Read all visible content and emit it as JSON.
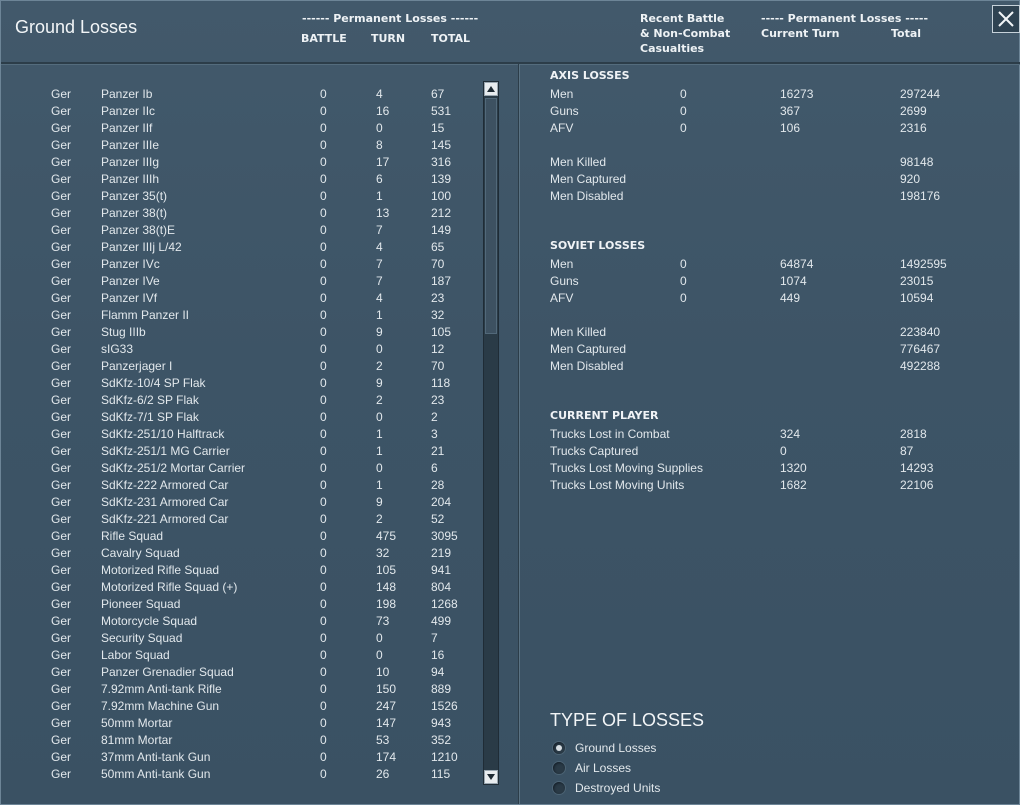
{
  "window": {
    "title": "Ground Losses"
  },
  "header": {
    "perm_losses_left": "------ Permanent Losses ------",
    "col_battle": "BATTLE",
    "col_turn": "TURN",
    "col_total": "TOTAL",
    "recent_line1": "Recent Battle",
    "recent_line2": "& Non-Combat",
    "recent_line3": "Casualties",
    "perm_losses_right": "----- Permanent Losses -----",
    "col_current_turn": "Current Turn",
    "col_total_right": "Total"
  },
  "units": [
    {
      "nat": "Ger",
      "name": "Panzer Ib",
      "battle": "0",
      "turn": "4",
      "total": "67"
    },
    {
      "nat": "Ger",
      "name": "Panzer IIc",
      "battle": "0",
      "turn": "16",
      "total": "531"
    },
    {
      "nat": "Ger",
      "name": "Panzer IIf",
      "battle": "0",
      "turn": "0",
      "total": "15"
    },
    {
      "nat": "Ger",
      "name": "Panzer IIIe",
      "battle": "0",
      "turn": "8",
      "total": "145"
    },
    {
      "nat": "Ger",
      "name": "Panzer IIIg",
      "battle": "0",
      "turn": "17",
      "total": "316"
    },
    {
      "nat": "Ger",
      "name": "Panzer IIIh",
      "battle": "0",
      "turn": "6",
      "total": "139"
    },
    {
      "nat": "Ger",
      "name": "Panzer 35(t)",
      "battle": "0",
      "turn": "1",
      "total": "100"
    },
    {
      "nat": "Ger",
      "name": "Panzer 38(t)",
      "battle": "0",
      "turn": "13",
      "total": "212"
    },
    {
      "nat": "Ger",
      "name": "Panzer 38(t)E",
      "battle": "0",
      "turn": "7",
      "total": "149"
    },
    {
      "nat": "Ger",
      "name": "Panzer IIIj L/42",
      "battle": "0",
      "turn": "4",
      "total": "65"
    },
    {
      "nat": "Ger",
      "name": "Panzer IVc",
      "battle": "0",
      "turn": "7",
      "total": "70"
    },
    {
      "nat": "Ger",
      "name": "Panzer IVe",
      "battle": "0",
      "turn": "7",
      "total": "187"
    },
    {
      "nat": "Ger",
      "name": "Panzer IVf",
      "battle": "0",
      "turn": "4",
      "total": "23"
    },
    {
      "nat": "Ger",
      "name": "Flamm Panzer II",
      "battle": "0",
      "turn": "1",
      "total": "32"
    },
    {
      "nat": "Ger",
      "name": "Stug IIIb",
      "battle": "0",
      "turn": "9",
      "total": "105"
    },
    {
      "nat": "Ger",
      "name": "sIG33",
      "battle": "0",
      "turn": "0",
      "total": "12"
    },
    {
      "nat": "Ger",
      "name": "Panzerjager I",
      "battle": "0",
      "turn": "2",
      "total": "70"
    },
    {
      "nat": "Ger",
      "name": "SdKfz-10/4 SP Flak",
      "battle": "0",
      "turn": "9",
      "total": "118"
    },
    {
      "nat": "Ger",
      "name": "SdKfz-6/2 SP Flak",
      "battle": "0",
      "turn": "2",
      "total": "23"
    },
    {
      "nat": "Ger",
      "name": "SdKfz-7/1 SP Flak",
      "battle": "0",
      "turn": "0",
      "total": "2"
    },
    {
      "nat": "Ger",
      "name": "SdKfz-251/10 Halftrack",
      "battle": "0",
      "turn": "1",
      "total": "3"
    },
    {
      "nat": "Ger",
      "name": "SdKfz-251/1 MG Carrier",
      "battle": "0",
      "turn": "1",
      "total": "21"
    },
    {
      "nat": "Ger",
      "name": "SdKfz-251/2 Mortar Carrier",
      "battle": "0",
      "turn": "0",
      "total": "6"
    },
    {
      "nat": "Ger",
      "name": "SdKfz-222 Armored Car",
      "battle": "0",
      "turn": "1",
      "total": "28"
    },
    {
      "nat": "Ger",
      "name": "SdKfz-231 Armored Car",
      "battle": "0",
      "turn": "9",
      "total": "204"
    },
    {
      "nat": "Ger",
      "name": "SdKfz-221 Armored Car",
      "battle": "0",
      "turn": "2",
      "total": "52"
    },
    {
      "nat": "Ger",
      "name": "Rifle Squad",
      "battle": "0",
      "turn": "475",
      "total": "3095"
    },
    {
      "nat": "Ger",
      "name": "Cavalry Squad",
      "battle": "0",
      "turn": "32",
      "total": "219"
    },
    {
      "nat": "Ger",
      "name": "Motorized Rifle Squad",
      "battle": "0",
      "turn": "105",
      "total": "941"
    },
    {
      "nat": "Ger",
      "name": "Motorized Rifle Squad (+)",
      "battle": "0",
      "turn": "148",
      "total": "804"
    },
    {
      "nat": "Ger",
      "name": "Pioneer Squad",
      "battle": "0",
      "turn": "198",
      "total": "1268"
    },
    {
      "nat": "Ger",
      "name": "Motorcycle Squad",
      "battle": "0",
      "turn": "73",
      "total": "499"
    },
    {
      "nat": "Ger",
      "name": "Security Squad",
      "battle": "0",
      "turn": "0",
      "total": "7"
    },
    {
      "nat": "Ger",
      "name": "Labor Squad",
      "battle": "0",
      "turn": "0",
      "total": "16"
    },
    {
      "nat": "Ger",
      "name": "Panzer Grenadier Squad",
      "battle": "0",
      "turn": "10",
      "total": "94"
    },
    {
      "nat": "Ger",
      "name": "7.92mm Anti-tank Rifle",
      "battle": "0",
      "turn": "150",
      "total": "889"
    },
    {
      "nat": "Ger",
      "name": "7.92mm Machine Gun",
      "battle": "0",
      "turn": "247",
      "total": "1526"
    },
    {
      "nat": "Ger",
      "name": "50mm Mortar",
      "battle": "0",
      "turn": "147",
      "total": "943"
    },
    {
      "nat": "Ger",
      "name": "81mm Mortar",
      "battle": "0",
      "turn": "53",
      "total": "352"
    },
    {
      "nat": "Ger",
      "name": "37mm Anti-tank Gun",
      "battle": "0",
      "turn": "174",
      "total": "1210"
    },
    {
      "nat": "Ger",
      "name": "50mm Anti-tank Gun",
      "battle": "0",
      "turn": "26",
      "total": "115"
    }
  ],
  "axis": {
    "title": "AXIS LOSSES",
    "rows": [
      {
        "label": "Men",
        "battle": "0",
        "current": "16273",
        "total": "297244"
      },
      {
        "label": "Guns",
        "battle": "0",
        "current": "367",
        "total": "2699"
      },
      {
        "label": "AFV",
        "battle": "0",
        "current": "106",
        "total": "2316"
      }
    ],
    "breakdown": [
      {
        "label": "Men Killed",
        "total": "98148"
      },
      {
        "label": "Men Captured",
        "total": "920"
      },
      {
        "label": "Men Disabled",
        "total": "198176"
      }
    ]
  },
  "soviet": {
    "title": "SOVIET LOSSES",
    "rows": [
      {
        "label": "Men",
        "battle": "0",
        "current": "64874",
        "total": "1492595"
      },
      {
        "label": "Guns",
        "battle": "0",
        "current": "1074",
        "total": "23015"
      },
      {
        "label": "AFV",
        "battle": "0",
        "current": "449",
        "total": "10594"
      }
    ],
    "breakdown": [
      {
        "label": "Men Killed",
        "total": "223840"
      },
      {
        "label": "Men Captured",
        "total": "776467"
      },
      {
        "label": "Men Disabled",
        "total": "492288"
      }
    ]
  },
  "current_player": {
    "title": "CURRENT PLAYER",
    "rows": [
      {
        "label": "Trucks Lost in Combat",
        "current": "324",
        "total": "2818"
      },
      {
        "label": "Trucks Captured",
        "current": "0",
        "total": "87"
      },
      {
        "label": "Trucks Lost Moving Supplies",
        "current": "1320",
        "total": "14293"
      },
      {
        "label": "Trucks Lost Moving Units",
        "current": "1682",
        "total": "22106"
      }
    ]
  },
  "type_of_losses": {
    "title": "TYPE OF LOSSES",
    "options": [
      {
        "label": "Ground Losses",
        "selected": true
      },
      {
        "label": "Air Losses",
        "selected": false
      },
      {
        "label": "Destroyed Units",
        "selected": false
      }
    ]
  },
  "icons": {
    "close": "close-icon",
    "scroll_up": "arrow-up-icon",
    "scroll_down": "arrow-down-icon"
  }
}
